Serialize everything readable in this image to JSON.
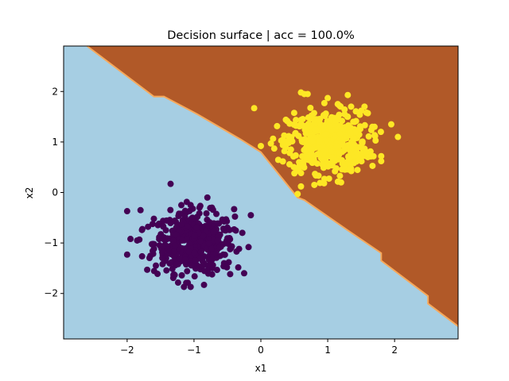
{
  "chart_data": {
    "type": "scatter",
    "title": "Decision surface | acc = 100.0%",
    "xlabel": "x1",
    "ylabel": "x2",
    "xlim": [
      -2.95,
      2.95
    ],
    "ylim": [
      -2.9,
      2.9
    ],
    "xticks": [
      -2,
      -1,
      0,
      1,
      2
    ],
    "yticks": [
      -2,
      -1,
      0,
      1,
      2
    ],
    "xtick_labels": [
      "−2",
      "−1",
      "0",
      "1",
      "2"
    ],
    "ytick_labels": [
      "−2",
      "−1",
      "0",
      "1",
      "2"
    ],
    "grid": false,
    "legend": false,
    "decision_boundary": [
      [
        -2.6,
        2.9
      ],
      [
        -1.6,
        1.9
      ],
      [
        -1.45,
        1.9
      ],
      [
        -0.95,
        1.55
      ],
      [
        -0.3,
        1.05
      ],
      [
        0.0,
        0.8
      ],
      [
        0.55,
        -0.1
      ],
      [
        0.65,
        -0.15
      ],
      [
        1.3,
        -0.75
      ],
      [
        1.8,
        -1.2
      ],
      [
        1.8,
        -1.35
      ],
      [
        2.5,
        -2.05
      ],
      [
        2.5,
        -2.2
      ],
      [
        2.95,
        -2.65
      ]
    ],
    "regions": [
      {
        "class": 0,
        "side": "lower-left",
        "color": "#a6cee3"
      },
      {
        "class": 1,
        "side": "upper-right",
        "color": "#b15928"
      }
    ],
    "boundary_color": "#f7a85a",
    "series": [
      {
        "color": "#440154",
        "center": [
          -1.0,
          -1.0
        ],
        "spread": 0.3,
        "count": 500,
        "points": [
          [
            -1.35,
            0.17
          ],
          [
            -2.0,
            -0.37
          ],
          [
            -1.8,
            -0.35
          ],
          [
            -1.6,
            -0.52
          ],
          [
            -0.15,
            -0.45
          ],
          [
            -2.0,
            -1.23
          ],
          [
            -1.7,
            -1.53
          ],
          [
            -0.25,
            -1.6
          ],
          [
            -1.15,
            -1.87
          ],
          [
            -1.05,
            -1.87
          ],
          [
            -0.85,
            -1.83
          ],
          [
            -1.3,
            -1.62
          ],
          [
            -0.75,
            -1.45
          ],
          [
            -1.95,
            -0.92
          ],
          [
            -0.4,
            -0.73
          ],
          [
            -0.8,
            -0.1
          ],
          [
            -1.05,
            -0.25
          ],
          [
            -0.4,
            -0.33
          ],
          [
            -1.85,
            -0.95
          ],
          [
            -0.55,
            -1.4
          ]
        ]
      },
      {
        "color": "#fde725",
        "center": [
          1.0,
          1.0
        ],
        "spread": 0.3,
        "count": 500,
        "points": [
          [
            -0.1,
            1.67
          ],
          [
            0.6,
            1.98
          ],
          [
            0.65,
            1.95
          ],
          [
            0.95,
            1.77
          ],
          [
            1.0,
            1.87
          ],
          [
            1.3,
            1.93
          ],
          [
            1.35,
            1.7
          ],
          [
            1.55,
            1.7
          ],
          [
            1.6,
            1.57
          ],
          [
            1.95,
            1.35
          ],
          [
            2.05,
            1.1
          ],
          [
            0.0,
            0.92
          ],
          [
            0.15,
            0.97
          ],
          [
            0.2,
            0.87
          ],
          [
            0.45,
            0.85
          ],
          [
            0.55,
            -0.03
          ],
          [
            0.6,
            0.12
          ],
          [
            0.8,
            0.15
          ],
          [
            0.95,
            0.27
          ],
          [
            1.2,
            0.2
          ],
          [
            1.35,
            0.47
          ],
          [
            1.6,
            0.7
          ],
          [
            1.8,
            0.72
          ],
          [
            1.8,
            0.62
          ],
          [
            1.7,
            1.3
          ],
          [
            0.7,
            1.95
          ],
          [
            1.15,
            1.75
          ]
        ]
      }
    ]
  }
}
